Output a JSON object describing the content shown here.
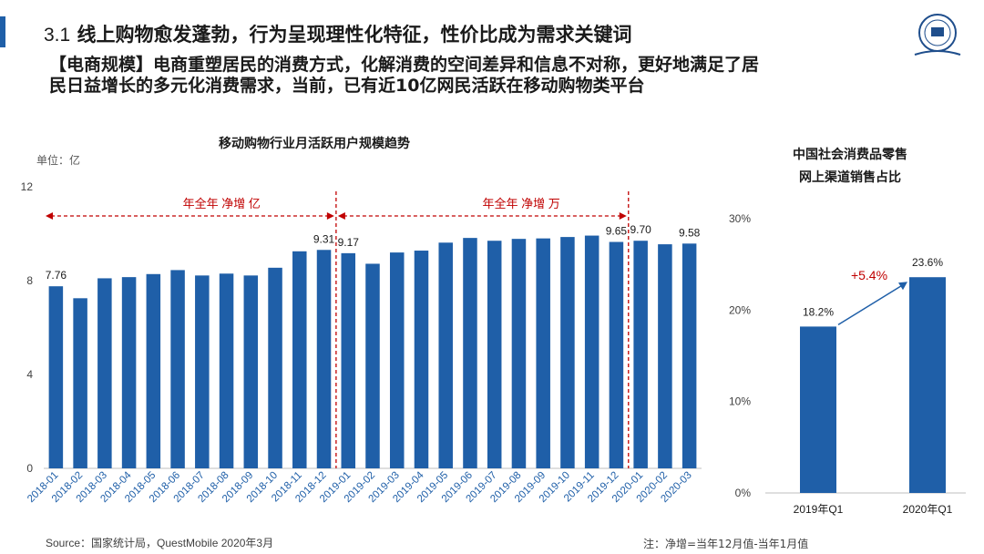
{
  "header": {
    "title_num": "3.1",
    "title_text": "线上购物愈发蓬勃，行为呈现理性化特征，性价比成为需求关键词",
    "body": "【电商规模】电商重塑居民的消费方式，化解消费的空间差异和信息不对称，更好地满足了居民日益增长的多元化消费需求，当前，已有近10亿网民活跃在移动购物类平台"
  },
  "left_chart": {
    "unit": "单位：亿",
    "annotation_2018": "年全年 净增 亿",
    "annotation_2019": "年全年 净增 万"
  },
  "right_chart": {
    "title_line1": "中国社会消费品零售",
    "title_line2": "网上渠道销售占比",
    "change_label": "+5.4%"
  },
  "footer": {
    "source": "Source：国家统计局，QuestMobile 2020年3月",
    "note": "注：净增=当年12月值-当年1月值"
  },
  "colors": {
    "bar": "#1f5fa8",
    "accent_red": "#c00000",
    "title_bar": "#1f5fa8"
  },
  "chart_data": [
    {
      "type": "bar",
      "title": "移动购物行业月活跃用户规模趋势",
      "xlabel": "",
      "ylabel": "",
      "ylim": [
        0,
        12
      ],
      "yticks": [
        0,
        4,
        8,
        12
      ],
      "categories": [
        "2018-01",
        "2018-02",
        "2018-03",
        "2018-04",
        "2018-05",
        "2018-06",
        "2018-07",
        "2018-08",
        "2018-09",
        "2018-10",
        "2018-11",
        "2018-12",
        "2019-01",
        "2019-02",
        "2019-03",
        "2019-04",
        "2019-05",
        "2019-06",
        "2019-07",
        "2019-08",
        "2019-09",
        "2019-10",
        "2019-11",
        "2019-12",
        "2020-01",
        "2020-02",
        "2020-03"
      ],
      "values": [
        7.76,
        7.25,
        8.1,
        8.15,
        8.28,
        8.45,
        8.22,
        8.3,
        8.22,
        8.55,
        9.25,
        9.31,
        9.17,
        8.72,
        9.2,
        9.28,
        9.62,
        9.82,
        9.7,
        9.78,
        9.8,
        9.86,
        9.92,
        9.65,
        9.7,
        9.55,
        9.58
      ],
      "data_labels": {
        "0": "7.76",
        "11": "9.31",
        "12": "9.17",
        "23": "9.65",
        "24": "9.70",
        "26": "9.58"
      }
    },
    {
      "type": "bar",
      "title": "中国社会消费品零售网上渠道销售占比",
      "xlabel": "",
      "ylabel": "",
      "ylim": [
        0,
        30
      ],
      "yticks": [
        "0%",
        "10%",
        "20%",
        "30%"
      ],
      "categories": [
        "2019年Q1",
        "2020年Q1"
      ],
      "values": [
        18.2,
        23.6
      ],
      "data_labels": [
        "18.2%",
        "23.6%"
      ]
    }
  ]
}
